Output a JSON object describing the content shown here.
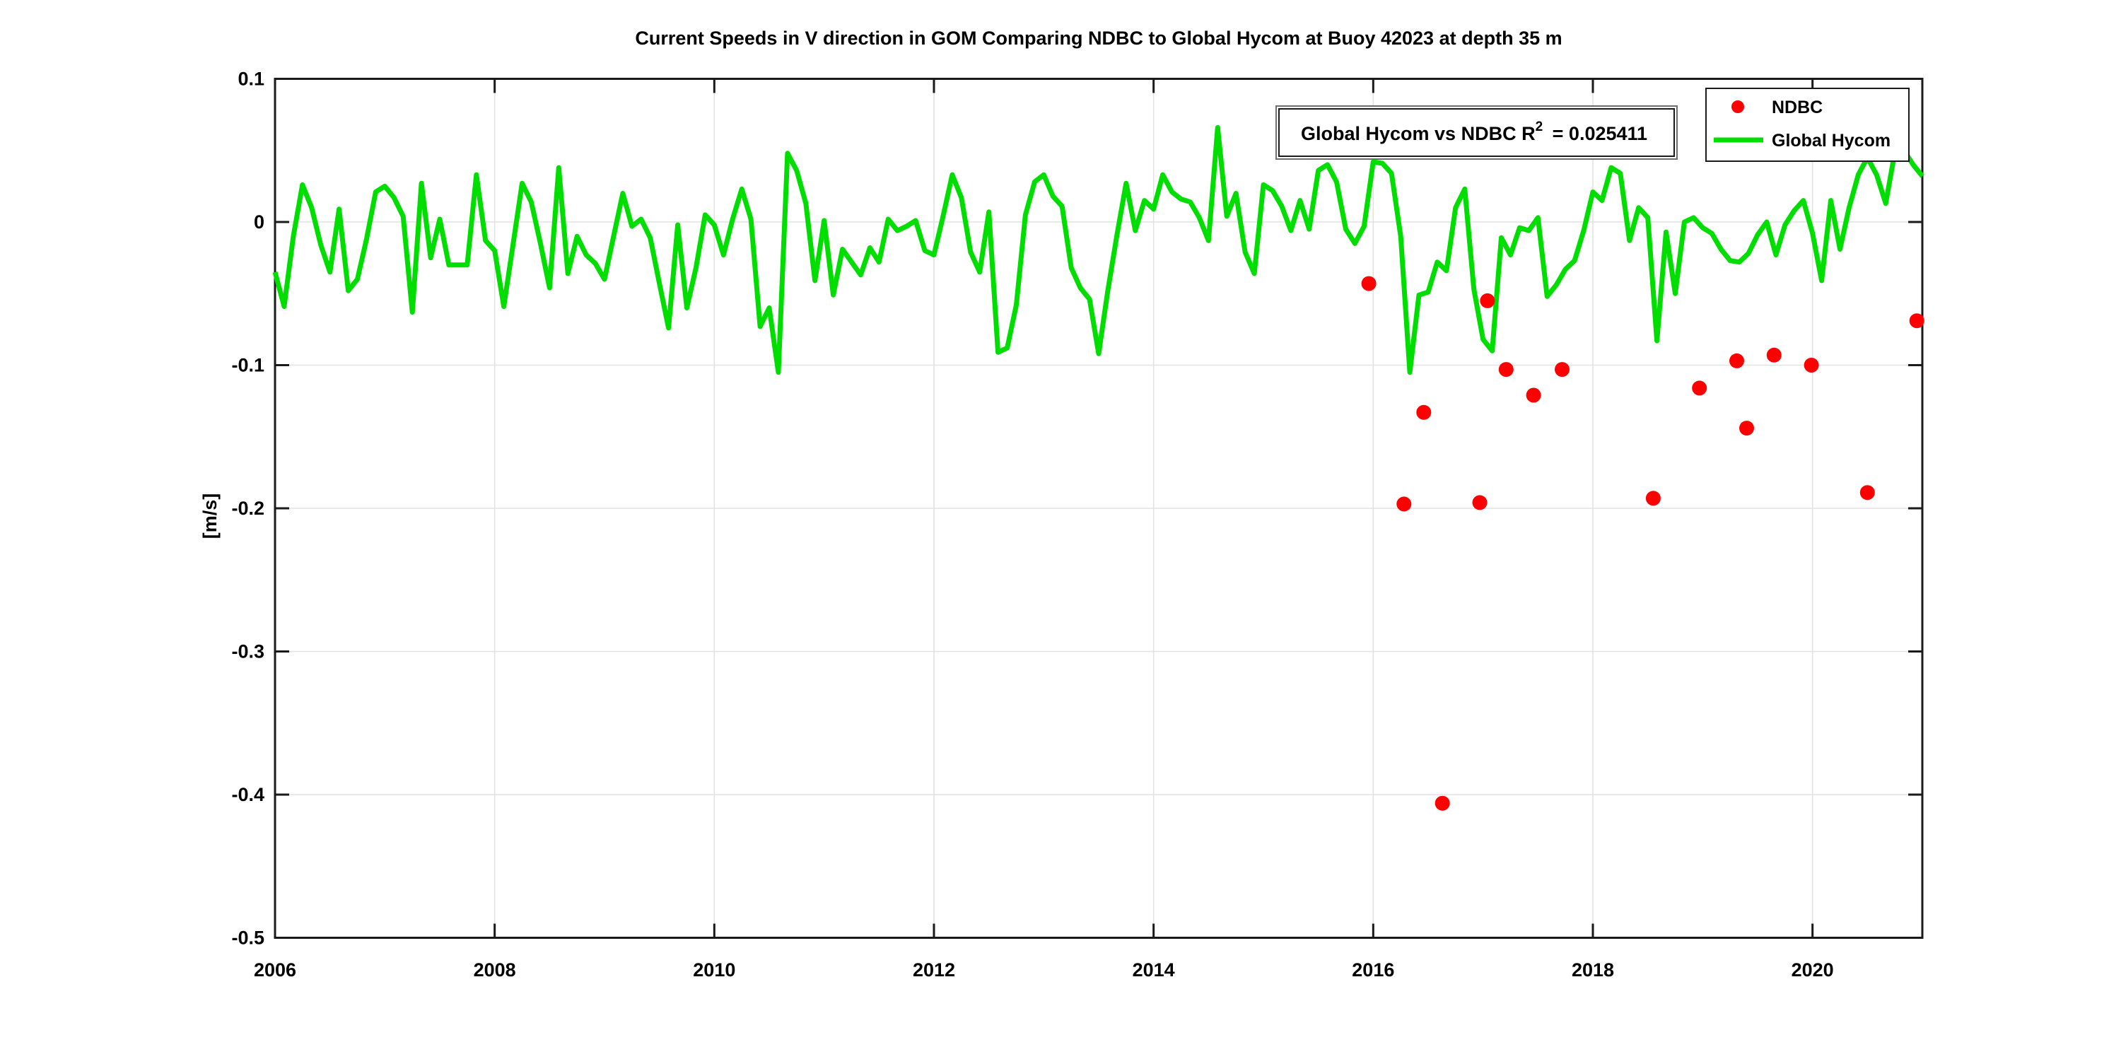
{
  "figure": {
    "background": "#ffffff",
    "frame_color": "#1a1a1a",
    "grid_color": "#e2e2e2"
  },
  "chart_data": {
    "type": "line",
    "title": "Current Speeds in V direction in GOM Comparing NDBC to Global Hycom at Buoy  42023  at depth  35 m",
    "xlabel": "",
    "ylabel": "[m/s]",
    "xlim": [
      2006,
      2021
    ],
    "ylim": [
      -0.5,
      0.1
    ],
    "grid": true,
    "xticks": [
      2006,
      2008,
      2010,
      2012,
      2014,
      2016,
      2018,
      2020
    ],
    "xtick_labels": [
      "2006",
      "2008",
      "2010",
      "2012",
      "2014",
      "2016",
      "2018",
      "2020"
    ],
    "yticks": [
      0.1,
      0,
      -0.1,
      -0.2,
      -0.3,
      -0.4,
      -0.5
    ],
    "ytick_labels": [
      "0.1",
      "0",
      "-0.1",
      "-0.2",
      "-0.3",
      "-0.4",
      "-0.5"
    ],
    "annotation": {
      "text_prefix": "Global Hycom vs NDBC R",
      "superscript": "2",
      "text_suffix": " = 0.025411"
    },
    "legend": {
      "position": "northeast",
      "entries": [
        {
          "label": "NDBC",
          "marker": "dot",
          "color": "#ff0000"
        },
        {
          "label": "Global Hycom",
          "marker": "line",
          "color": "#00dd00"
        }
      ]
    },
    "series": [
      {
        "name": "Global Hycom",
        "type": "line",
        "color": "#00dd00",
        "line_width": 7,
        "x_start": 2006.0,
        "x_step_years": 0.083333,
        "values": [
          -0.035,
          -0.059,
          -0.01,
          0.026,
          0.01,
          -0.016,
          -0.035,
          0.009,
          -0.048,
          -0.04,
          -0.012,
          0.021,
          0.025,
          0.017,
          0.004,
          -0.063,
          0.027,
          -0.025,
          0.002,
          -0.03,
          -0.03,
          -0.03,
          0.033,
          -0.013,
          -0.02,
          -0.059,
          -0.016,
          0.027,
          0.014,
          -0.015,
          -0.046,
          0.038,
          -0.036,
          -0.01,
          -0.023,
          -0.029,
          -0.04,
          -0.01,
          0.02,
          -0.003,
          0.002,
          -0.011,
          -0.043,
          -0.074,
          -0.002,
          -0.06,
          -0.032,
          0.005,
          -0.002,
          -0.023,
          0.002,
          0.023,
          0.002,
          -0.073,
          -0.06,
          -0.105,
          0.048,
          0.036,
          0.013,
          -0.041,
          0.001,
          -0.051,
          -0.019,
          -0.028,
          -0.037,
          -0.018,
          -0.028,
          0.002,
          -0.006,
          -0.003,
          0.001,
          -0.02,
          -0.023,
          0.004,
          0.033,
          0.017,
          -0.021,
          -0.035,
          0.007,
          -0.091,
          -0.088,
          -0.058,
          0.005,
          0.028,
          0.033,
          0.018,
          0.011,
          -0.032,
          -0.046,
          -0.054,
          -0.092,
          -0.048,
          -0.009,
          0.027,
          -0.006,
          0.015,
          0.009,
          0.033,
          0.021,
          0.016,
          0.014,
          0.003,
          -0.013,
          0.066,
          0.004,
          0.02,
          -0.021,
          -0.036,
          0.026,
          0.022,
          0.011,
          -0.006,
          0.015,
          -0.005,
          0.036,
          0.04,
          0.028,
          -0.005,
          -0.015,
          -0.003,
          0.042,
          0.041,
          0.034,
          -0.01,
          -0.105,
          -0.051,
          -0.049,
          -0.028,
          -0.034,
          0.01,
          0.023,
          -0.047,
          -0.082,
          -0.09,
          -0.011,
          -0.023,
          -0.004,
          -0.006,
          0.003,
          -0.052,
          -0.044,
          -0.033,
          -0.027,
          -0.006,
          0.021,
          0.015,
          0.038,
          0.034,
          -0.013,
          0.01,
          0.003,
          -0.083,
          -0.007,
          -0.05,
          0.0,
          0.003,
          -0.004,
          -0.008,
          -0.019,
          -0.027,
          -0.028,
          -0.022,
          -0.009,
          0.0,
          -0.023,
          -0.002,
          0.008,
          0.015,
          -0.008,
          -0.041,
          0.015,
          -0.019,
          0.01,
          0.033,
          0.045,
          0.033,
          0.013,
          0.049,
          0.05,
          0.04,
          0.032
        ]
      },
      {
        "name": "NDBC",
        "type": "scatter",
        "color": "#ff0000",
        "marker_radius": 10.5,
        "points": [
          [
            2015.96,
            -0.043
          ],
          [
            2016.28,
            -0.197
          ],
          [
            2016.46,
            -0.133
          ],
          [
            2016.63,
            -0.406
          ],
          [
            2016.97,
            -0.196
          ],
          [
            2017.04,
            -0.055
          ],
          [
            2017.21,
            -0.103
          ],
          [
            2017.46,
            -0.121
          ],
          [
            2017.72,
            -0.103
          ],
          [
            2018.55,
            -0.193
          ],
          [
            2018.97,
            -0.116
          ],
          [
            2019.31,
            -0.097
          ],
          [
            2019.4,
            -0.144
          ],
          [
            2019.65,
            -0.093
          ],
          [
            2019.99,
            -0.1
          ],
          [
            2020.5,
            -0.189
          ],
          [
            2020.95,
            -0.069
          ]
        ]
      }
    ]
  }
}
